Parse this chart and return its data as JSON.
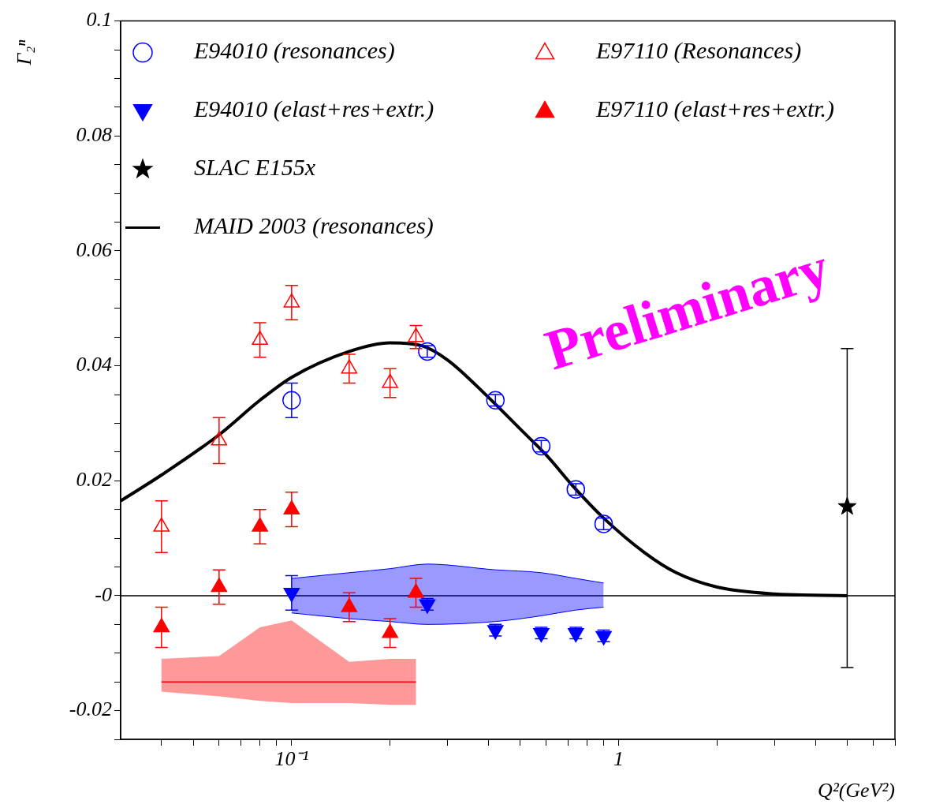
{
  "chart_data": {
    "type": "scatter",
    "xlabel": "Q²(GeV²)",
    "ylabel": "Γ₂ⁿ",
    "log": "x",
    "grid": false,
    "legend": "top left",
    "xlim": [
      0.03,
      7
    ],
    "ylim": [
      -0.025,
      0.1
    ],
    "xticks": [
      {
        "value": 0.04,
        "label": null
      },
      {
        "value": 0.05,
        "label": null
      },
      {
        "value": 0.06,
        "label": null
      },
      {
        "value": 0.07,
        "label": null
      },
      {
        "value": 0.08,
        "label": null
      },
      {
        "value": 0.09,
        "label": null
      },
      {
        "value": 0.1,
        "label": "10⁻¹"
      },
      {
        "value": 0.2,
        "label": null
      },
      {
        "value": 0.3,
        "label": null
      },
      {
        "value": 0.4,
        "label": null
      },
      {
        "value": 0.5,
        "label": null
      },
      {
        "value": 0.6,
        "label": null
      },
      {
        "value": 0.7,
        "label": null
      },
      {
        "value": 0.8,
        "label": null
      },
      {
        "value": 0.9,
        "label": null
      },
      {
        "value": 1,
        "label": "1"
      },
      {
        "value": 2,
        "label": null
      },
      {
        "value": 3,
        "label": null
      },
      {
        "value": 4,
        "label": null
      },
      {
        "value": 5,
        "label": null
      },
      {
        "value": 6,
        "label": null
      },
      {
        "value": 7,
        "label": null
      }
    ],
    "yticks": [
      {
        "value": -0.025,
        "label": null
      },
      -0.02,
      {
        "value": -0.015,
        "label": null
      },
      {
        "value": -0.01,
        "label": null
      },
      {
        "value": -0.005,
        "label": null
      },
      {
        "value": 0,
        "label": "-0"
      },
      {
        "value": 0.005,
        "label": null
      },
      {
        "value": 0.01,
        "label": null
      },
      {
        "value": 0.015,
        "label": null
      },
      0.02,
      {
        "value": 0.025,
        "label": null
      },
      {
        "value": 0.03,
        "label": null
      },
      {
        "value": 0.035,
        "label": null
      },
      0.04,
      {
        "value": 0.045,
        "label": null
      },
      {
        "value": 0.05,
        "label": null
      },
      {
        "value": 0.055,
        "label": null
      },
      0.06,
      {
        "value": 0.065,
        "label": null
      },
      {
        "value": 0.07,
        "label": null
      },
      {
        "value": 0.075,
        "label": null
      },
      0.08,
      {
        "value": 0.085,
        "label": null
      },
      {
        "value": 0.09,
        "label": null
      },
      {
        "value": 0.095,
        "label": null
      },
      0.1
    ],
    "ref_lines": [
      {
        "axis": "y",
        "value": 0,
        "color": "#000000"
      }
    ],
    "annotations": [
      "Preliminary"
    ],
    "series": [
      {
        "name": "E94010 (resonances)",
        "color": "#0000ff",
        "marker": "circle-open",
        "x": [
          0.1,
          0.26,
          0.42,
          0.58,
          0.74,
          0.9
        ],
        "values": [
          0.034,
          0.0425,
          0.034,
          0.026,
          0.0185,
          0.0125
        ],
        "errors": [
          0.003,
          0.001,
          0.001,
          0.001,
          0.001,
          0.001
        ]
      },
      {
        "name": "E97110 (Resonances)",
        "color": "#ff0000",
        "marker": "triangle-open",
        "x": [
          0.04,
          0.06,
          0.08,
          0.1,
          0.15,
          0.2,
          0.24
        ],
        "values": [
          0.012,
          0.027,
          0.0445,
          0.051,
          0.0395,
          0.037,
          0.045
        ],
        "errors": [
          0.0045,
          0.004,
          0.003,
          0.003,
          0.0025,
          0.0025,
          0.002
        ]
      },
      {
        "name": "E94010 (elast+res+extr.)",
        "color": "#0000ff",
        "marker": "triangle-down",
        "x": [
          0.1,
          0.26,
          0.42,
          0.58,
          0.74,
          0.9
        ],
        "values": [
          0.0005,
          -0.0015,
          -0.006,
          -0.0065,
          -0.0065,
          -0.007
        ],
        "errors": [
          0.003,
          0.001,
          0.001,
          0.001,
          0.001,
          0.001
        ]
      },
      {
        "name": "E97110 (elast+res+extr.)",
        "color": "#ff0000",
        "marker": "triangle",
        "x": [
          0.04,
          0.06,
          0.08,
          0.1,
          0.15,
          0.2,
          0.24
        ],
        "values": [
          -0.0055,
          0.0015,
          0.012,
          0.015,
          -0.002,
          -0.0065,
          0.0005
        ],
        "errors": [
          0.0035,
          0.003,
          0.003,
          0.003,
          0.0025,
          0.0025,
          0.0025
        ]
      },
      {
        "name": "SLAC E155x",
        "color": "#000000",
        "marker": "star",
        "x": [
          5
        ],
        "values": [
          0.0155
        ],
        "errors": [
          [
            -0.0125,
            0.043
          ]
        ]
      },
      {
        "name": "MAID 2003 (resonances)",
        "type": "line",
        "color": "#000000",
        "marker": "none",
        "x": [
          0.03,
          0.04,
          0.06,
          0.08,
          0.1,
          0.15,
          0.2,
          0.25,
          0.3,
          0.4,
          0.5,
          0.6,
          0.74,
          0.9,
          1.2,
          1.5,
          2,
          3,
          5
        ],
        "values": [
          0.0165,
          0.021,
          0.028,
          0.034,
          0.038,
          0.0425,
          0.044,
          0.0435,
          0.041,
          0.0345,
          0.029,
          0.0245,
          0.0185,
          0.0135,
          0.0075,
          0.004,
          0.0015,
          0.0003,
          0
        ]
      },
      {
        "type": "line",
        "color": "#ff0000",
        "marker": "none",
        "x": [
          0.04,
          0.06,
          0.08,
          0.1,
          0.15,
          0.2,
          0.24
        ],
        "values": [
          -0.015,
          -0.015,
          -0.015,
          -0.015,
          -0.015,
          -0.015,
          -0.015
        ],
        "lower": [
          -0.0167,
          -0.0175,
          -0.0183,
          -0.0187,
          -0.0187,
          -0.019,
          -0.019
        ],
        "upper": [
          -0.011,
          -0.0105,
          -0.0055,
          -0.0043,
          -0.0115,
          -0.011,
          -0.011
        ]
      },
      {
        "type": "area",
        "color": "#0000ff",
        "x": [
          0.1,
          0.15,
          0.2,
          0.26,
          0.42,
          0.58,
          0.74,
          0.9
        ],
        "values": [
          0.003,
          0.004,
          0.0047,
          0.0055,
          0.0045,
          0.004,
          0.003,
          0.0022
        ]
      },
      {
        "type": "area",
        "color": "#0000ff",
        "x": [
          0.1,
          0.15,
          0.2,
          0.26,
          0.42,
          0.58,
          0.74,
          0.9
        ],
        "values": [
          -0.003,
          -0.004,
          -0.0045,
          -0.005,
          -0.0045,
          -0.0035,
          -0.0025,
          -0.002
        ]
      }
    ]
  }
}
